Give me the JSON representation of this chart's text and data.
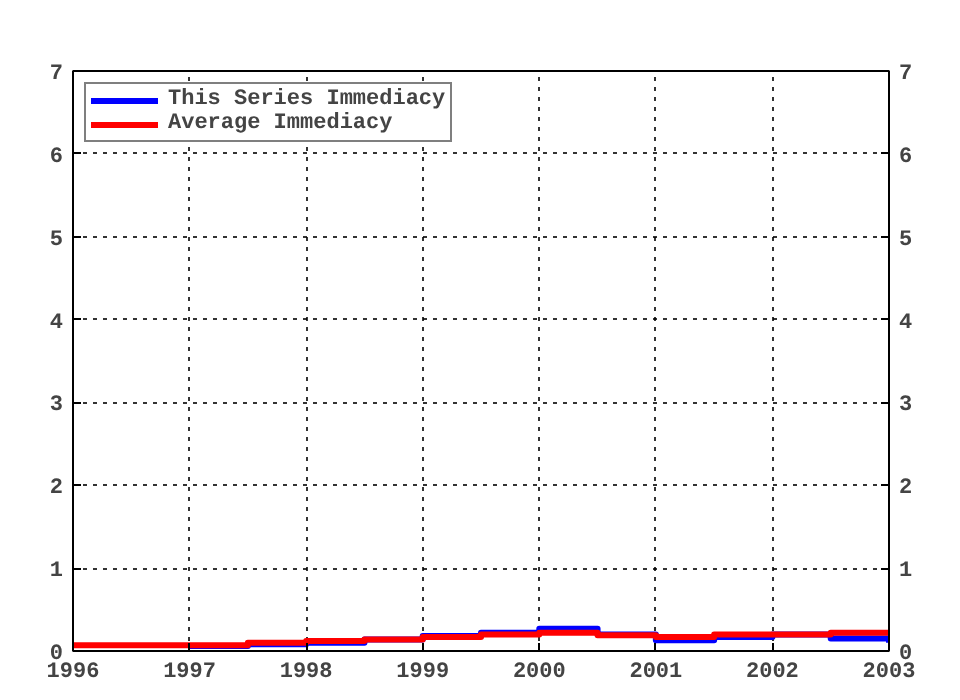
{
  "chart_data": {
    "type": "step",
    "x": [
      1996,
      1996.5,
      1997,
      1997.5,
      1998,
      1998.5,
      1999,
      1999.5,
      2000,
      2000.5,
      2001,
      2001.5,
      2002,
      2002.5,
      2003
    ],
    "series": [
      {
        "name": "This Series Immediacy",
        "color": "#0000ff",
        "values": [
          null,
          null,
          0.06,
          0.08,
          0.1,
          0.14,
          0.18,
          0.22,
          0.27,
          0.2,
          0.13,
          0.17,
          0.2,
          0.15,
          0.1
        ]
      },
      {
        "name": "Average Immediacy",
        "color": "#ff0000",
        "values": [
          0.07,
          0.07,
          0.07,
          0.1,
          0.12,
          0.14,
          0.17,
          0.2,
          0.22,
          0.19,
          0.17,
          0.2,
          0.2,
          0.22,
          0.22
        ]
      }
    ],
    "xlim": [
      1996,
      2003
    ],
    "xticks": [
      1996,
      1997,
      1998,
      1999,
      2000,
      2001,
      2002,
      2003
    ],
    "ylim": [
      0,
      7
    ],
    "yticks": [
      0,
      1,
      2,
      3,
      4,
      5,
      6,
      7
    ],
    "y2lim": [
      0,
      7
    ],
    "y2ticks": [
      0,
      1,
      2,
      3,
      4,
      5,
      6,
      7
    ],
    "grid": true,
    "legend": "top left",
    "line_style": "solid"
  }
}
